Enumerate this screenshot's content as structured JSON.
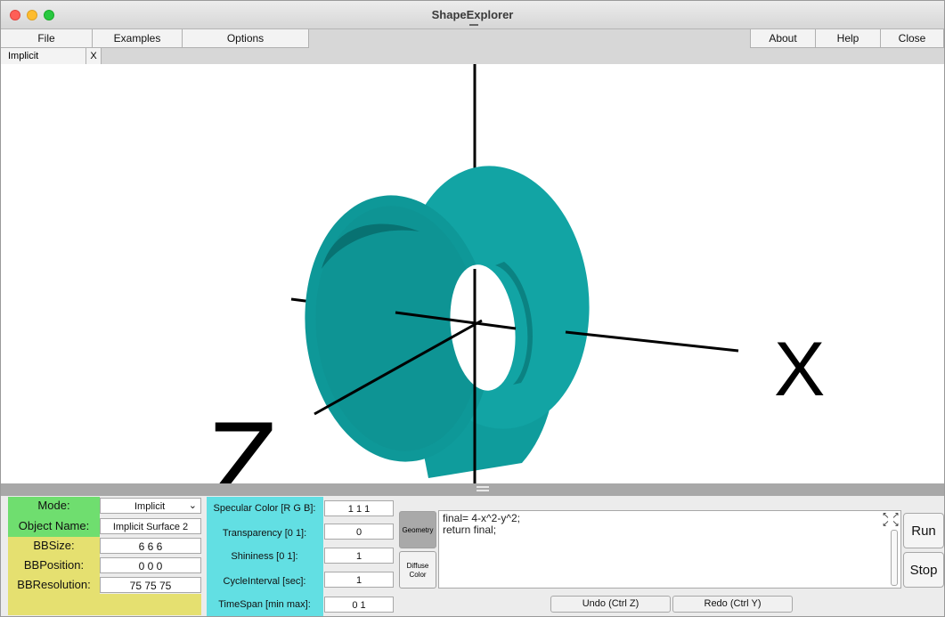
{
  "window": {
    "title": "ShapeExplorer"
  },
  "menu": {
    "file": "File",
    "examples": "Examples",
    "options": "Options",
    "about": "About",
    "help": "Help",
    "close": "Close"
  },
  "tab": {
    "label": "Implicit",
    "close": "X"
  },
  "viewport": {
    "axis_x_label": "X",
    "axis_z_label": "Z",
    "shape_color": "#0f9c9c",
    "shape_inner_color": "#0b7f7f"
  },
  "props": {
    "mode_label": "Mode:",
    "mode_value": "Implicit",
    "object_name_label": "Object Name:",
    "object_name_value": "Implicit Surface 2",
    "bbsize_label": "BBSize:",
    "bbsize_value": "6 6 6",
    "bbposition_label": "BBPosition:",
    "bbposition_value": "0 0 0",
    "bbresolution_label": "BBResolution:",
    "bbresolution_value": "75 75 75"
  },
  "material": {
    "specular_label": "Specular Color [R G B]:",
    "specular_value": "1 1 1",
    "transparency_label": "Transparency [0 1]:",
    "transparency_value": "0",
    "shininess_label": "Shininess [0 1]:",
    "shininess_value": "1",
    "cycle_label": "CycleInterval [sec]:",
    "cycle_value": "1",
    "timespan_label": "TimeSpan [min max]:",
    "timespan_value": "0 1"
  },
  "editor": {
    "geometry_tab": "Geometry",
    "diffuse_tab": "Diffuse Color",
    "code": "final= 4-x^2-y^2;\nreturn final;",
    "undo": "Undo (Ctrl Z)",
    "redo": "Redo (Ctrl Y)",
    "run": "Run",
    "stop": "Stop"
  },
  "colors": {
    "green_panel": "#6fde6f",
    "yellow_panel": "#e5e070",
    "cyan_panel": "#62dfe3"
  }
}
